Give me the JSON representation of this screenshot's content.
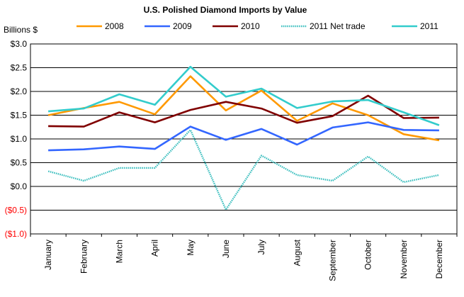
{
  "chart_data": {
    "type": "line",
    "title": "U.S. Polished Diamond Imports by Value",
    "ylabel": "Billions $",
    "xlabel": "",
    "categories": [
      "January",
      "February",
      "March",
      "April",
      "May",
      "June",
      "July",
      "August",
      "September",
      "October",
      "November",
      "December"
    ],
    "ylim": [
      -1.0,
      3.0
    ],
    "yticks": [
      3.0,
      2.5,
      2.0,
      1.5,
      1.0,
      0.5,
      0.0,
      -0.5,
      -1.0
    ],
    "ytick_labels": [
      "$3.0",
      "$2.5",
      "$2.0",
      "$1.5",
      "$1.0",
      "$0.5",
      "$0.0",
      "($0.5)",
      "($1.0)"
    ],
    "grid": true,
    "legend_position": "top",
    "series": [
      {
        "name": "2008",
        "color": "#FF9900",
        "style": "solid",
        "values": [
          1.5,
          1.65,
          1.78,
          1.52,
          2.32,
          1.6,
          2.02,
          1.38,
          1.75,
          1.5,
          1.1,
          0.97
        ]
      },
      {
        "name": "2009",
        "color": "#3366FF",
        "style": "solid",
        "values": [
          0.76,
          0.78,
          0.84,
          0.79,
          1.26,
          0.98,
          1.21,
          0.88,
          1.24,
          1.35,
          1.19,
          1.18
        ]
      },
      {
        "name": "2010",
        "color": "#800000",
        "style": "solid",
        "values": [
          1.27,
          1.26,
          1.56,
          1.35,
          1.61,
          1.78,
          1.64,
          1.34,
          1.48,
          1.91,
          1.44,
          1.45
        ]
      },
      {
        "name": "2011 Net trade",
        "color": "#40C0C0",
        "style": "dotted",
        "values": [
          0.32,
          0.12,
          0.39,
          0.39,
          1.19,
          -0.49,
          0.65,
          0.24,
          0.12,
          0.63,
          0.09,
          0.24
        ]
      },
      {
        "name": "2011",
        "color": "#33CCCC",
        "style": "solid",
        "values": [
          1.58,
          1.64,
          1.94,
          1.72,
          2.52,
          1.89,
          2.06,
          1.65,
          1.79,
          1.82,
          1.56,
          1.29
        ]
      }
    ],
    "colors": {
      "negative_tick": "#FF0000",
      "positive_tick": "#000000",
      "grid": "#000000"
    }
  }
}
